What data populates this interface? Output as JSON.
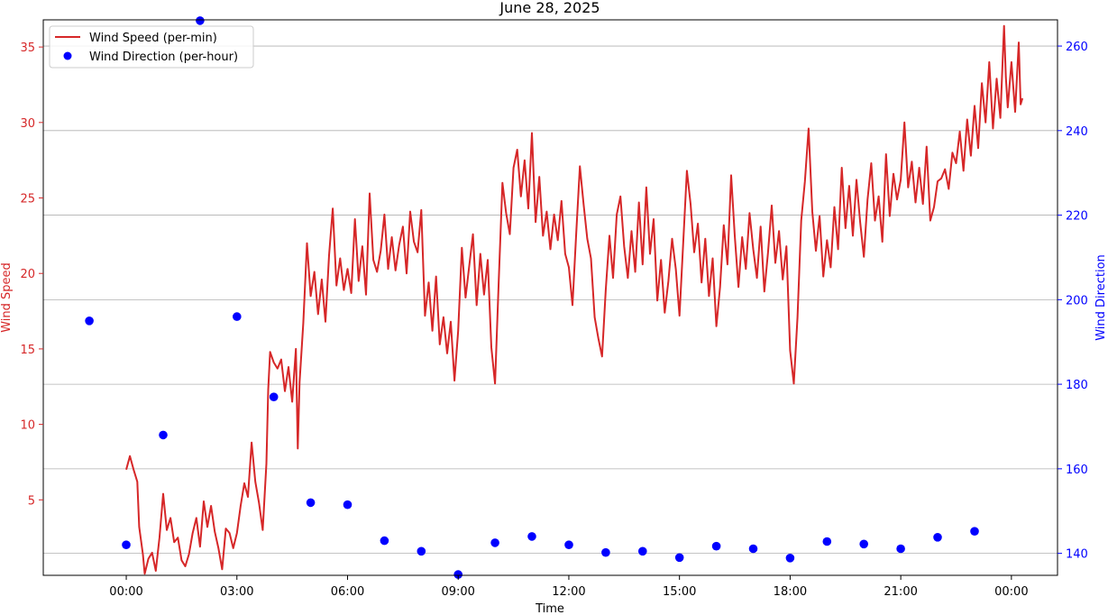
{
  "chart_data": {
    "type": "line",
    "title": "June 28, 2025",
    "xlabel": "Time",
    "ylabel_left": "Wind Speed",
    "ylabel_right": "Wind Direction",
    "x_ticks": [
      "00:00",
      "03:00",
      "06:00",
      "09:00",
      "12:00",
      "15:00",
      "18:00",
      "21:00",
      "00:00"
    ],
    "x_tick_hours": [
      0,
      3,
      6,
      9,
      12,
      15,
      18,
      21,
      24
    ],
    "xlim_hours": [
      -2.25,
      25.25
    ],
    "ylim_left": [
      0,
      36.8
    ],
    "ylim_right": [
      134.8,
      266.2
    ],
    "yticks_left": [
      5,
      10,
      15,
      20,
      25,
      30,
      35
    ],
    "yticks_right": [
      140,
      160,
      180,
      200,
      220,
      240,
      260
    ],
    "grid": "horizontal, right axis",
    "legend_position": "top-left",
    "left_axis_color": "#d62728",
    "right_axis_color": "#0000ff",
    "series": [
      {
        "name": "Wind Speed (per-min)",
        "axis": "left",
        "style": "line",
        "color": "#d62728",
        "points": [
          [
            0.0,
            7.0
          ],
          [
            0.1,
            7.9
          ],
          [
            0.2,
            7.0
          ],
          [
            0.3,
            6.2
          ],
          [
            0.35,
            3.2
          ],
          [
            0.45,
            1.4
          ],
          [
            0.5,
            0.1
          ],
          [
            0.6,
            1.1
          ],
          [
            0.7,
            1.5
          ],
          [
            0.8,
            0.3
          ],
          [
            0.9,
            2.5
          ],
          [
            1.0,
            5.4
          ],
          [
            1.1,
            3.0
          ],
          [
            1.2,
            3.8
          ],
          [
            1.3,
            2.2
          ],
          [
            1.4,
            2.5
          ],
          [
            1.5,
            1.0
          ],
          [
            1.6,
            0.6
          ],
          [
            1.7,
            1.4
          ],
          [
            1.8,
            2.8
          ],
          [
            1.9,
            3.8
          ],
          [
            2.0,
            1.9
          ],
          [
            2.1,
            4.9
          ],
          [
            2.2,
            3.2
          ],
          [
            2.3,
            4.6
          ],
          [
            2.4,
            2.9
          ],
          [
            2.5,
            1.8
          ],
          [
            2.6,
            0.4
          ],
          [
            2.7,
            3.1
          ],
          [
            2.8,
            2.8
          ],
          [
            2.9,
            1.8
          ],
          [
            3.0,
            2.8
          ],
          [
            3.1,
            4.6
          ],
          [
            3.2,
            6.1
          ],
          [
            3.3,
            5.2
          ],
          [
            3.4,
            8.8
          ],
          [
            3.5,
            6.2
          ],
          [
            3.6,
            4.8
          ],
          [
            3.7,
            3.0
          ],
          [
            3.8,
            7.4
          ],
          [
            3.85,
            12.3
          ],
          [
            3.9,
            14.8
          ],
          [
            4.0,
            14.1
          ],
          [
            4.1,
            13.7
          ],
          [
            4.2,
            14.3
          ],
          [
            4.3,
            12.2
          ],
          [
            4.4,
            13.8
          ],
          [
            4.5,
            11.5
          ],
          [
            4.6,
            15.0
          ],
          [
            4.65,
            8.4
          ],
          [
            4.7,
            12.8
          ],
          [
            4.8,
            16.7
          ],
          [
            4.9,
            22.0
          ],
          [
            5.0,
            18.5
          ],
          [
            5.1,
            20.1
          ],
          [
            5.2,
            17.3
          ],
          [
            5.3,
            19.6
          ],
          [
            5.4,
            16.8
          ],
          [
            5.5,
            21.2
          ],
          [
            5.6,
            24.3
          ],
          [
            5.7,
            19.2
          ],
          [
            5.8,
            21.0
          ],
          [
            5.9,
            18.9
          ],
          [
            6.0,
            20.3
          ],
          [
            6.1,
            18.7
          ],
          [
            6.2,
            23.6
          ],
          [
            6.3,
            19.5
          ],
          [
            6.4,
            21.8
          ],
          [
            6.5,
            18.6
          ],
          [
            6.6,
            25.3
          ],
          [
            6.7,
            20.9
          ],
          [
            6.8,
            20.1
          ],
          [
            6.9,
            21.5
          ],
          [
            7.0,
            23.9
          ],
          [
            7.1,
            20.3
          ],
          [
            7.2,
            22.4
          ],
          [
            7.3,
            20.2
          ],
          [
            7.4,
            21.9
          ],
          [
            7.5,
            23.1
          ],
          [
            7.6,
            20.0
          ],
          [
            7.7,
            24.1
          ],
          [
            7.8,
            22.1
          ],
          [
            7.9,
            21.4
          ],
          [
            8.0,
            24.2
          ],
          [
            8.1,
            17.2
          ],
          [
            8.2,
            19.4
          ],
          [
            8.3,
            16.2
          ],
          [
            8.4,
            19.8
          ],
          [
            8.5,
            15.3
          ],
          [
            8.6,
            17.1
          ],
          [
            8.7,
            14.7
          ],
          [
            8.8,
            16.8
          ],
          [
            8.9,
            12.9
          ],
          [
            9.0,
            16.2
          ],
          [
            9.1,
            21.7
          ],
          [
            9.2,
            18.4
          ],
          [
            9.3,
            20.5
          ],
          [
            9.4,
            22.6
          ],
          [
            9.5,
            17.9
          ],
          [
            9.6,
            21.3
          ],
          [
            9.7,
            18.6
          ],
          [
            9.8,
            20.9
          ],
          [
            9.9,
            15.1
          ],
          [
            10.0,
            12.7
          ],
          [
            10.1,
            19.5
          ],
          [
            10.2,
            26.0
          ],
          [
            10.3,
            24.0
          ],
          [
            10.4,
            22.6
          ],
          [
            10.5,
            27.0
          ],
          [
            10.6,
            28.2
          ],
          [
            10.7,
            25.1
          ],
          [
            10.8,
            27.5
          ],
          [
            10.9,
            24.3
          ],
          [
            11.0,
            29.3
          ],
          [
            11.1,
            23.4
          ],
          [
            11.2,
            26.4
          ],
          [
            11.3,
            22.5
          ],
          [
            11.4,
            24.1
          ],
          [
            11.5,
            21.6
          ],
          [
            11.6,
            23.9
          ],
          [
            11.7,
            22.2
          ],
          [
            11.8,
            24.8
          ],
          [
            11.9,
            21.3
          ],
          [
            12.0,
            20.4
          ],
          [
            12.1,
            17.9
          ],
          [
            12.2,
            22.6
          ],
          [
            12.3,
            27.1
          ],
          [
            12.4,
            24.6
          ],
          [
            12.5,
            22.3
          ],
          [
            12.6,
            21.0
          ],
          [
            12.7,
            17.1
          ],
          [
            12.8,
            15.7
          ],
          [
            12.9,
            14.5
          ],
          [
            13.0,
            18.9
          ],
          [
            13.1,
            22.5
          ],
          [
            13.2,
            19.7
          ],
          [
            13.3,
            23.9
          ],
          [
            13.4,
            25.1
          ],
          [
            13.5,
            21.8
          ],
          [
            13.6,
            19.7
          ],
          [
            13.7,
            22.8
          ],
          [
            13.8,
            20.1
          ],
          [
            13.9,
            24.7
          ],
          [
            14.0,
            20.6
          ],
          [
            14.1,
            25.7
          ],
          [
            14.2,
            21.3
          ],
          [
            14.3,
            23.6
          ],
          [
            14.4,
            18.2
          ],
          [
            14.5,
            20.9
          ],
          [
            14.6,
            17.4
          ],
          [
            14.7,
            19.5
          ],
          [
            14.8,
            22.3
          ],
          [
            14.9,
            20.3
          ],
          [
            15.0,
            17.2
          ],
          [
            15.1,
            22.0
          ],
          [
            15.2,
            26.8
          ],
          [
            15.3,
            24.6
          ],
          [
            15.4,
            21.4
          ],
          [
            15.5,
            23.3
          ],
          [
            15.6,
            19.4
          ],
          [
            15.7,
            22.3
          ],
          [
            15.8,
            18.5
          ],
          [
            15.9,
            21.0
          ],
          [
            16.0,
            16.5
          ],
          [
            16.1,
            19.1
          ],
          [
            16.2,
            23.2
          ],
          [
            16.3,
            20.6
          ],
          [
            16.4,
            26.5
          ],
          [
            16.5,
            22.5
          ],
          [
            16.6,
            19.1
          ],
          [
            16.7,
            22.4
          ],
          [
            16.8,
            20.3
          ],
          [
            16.9,
            24.0
          ],
          [
            17.0,
            21.6
          ],
          [
            17.1,
            19.7
          ],
          [
            17.2,
            23.1
          ],
          [
            17.3,
            18.8
          ],
          [
            17.4,
            21.4
          ],
          [
            17.5,
            24.5
          ],
          [
            17.6,
            20.7
          ],
          [
            17.7,
            22.8
          ],
          [
            17.8,
            19.6
          ],
          [
            17.9,
            21.8
          ],
          [
            18.0,
            14.9
          ],
          [
            18.1,
            12.7
          ],
          [
            18.2,
            17.1
          ],
          [
            18.3,
            23.5
          ],
          [
            18.4,
            26.1
          ],
          [
            18.5,
            29.6
          ],
          [
            18.6,
            24.1
          ],
          [
            18.7,
            21.5
          ],
          [
            18.8,
            23.8
          ],
          [
            18.9,
            19.8
          ],
          [
            19.0,
            22.2
          ],
          [
            19.1,
            20.4
          ],
          [
            19.2,
            24.4
          ],
          [
            19.3,
            21.6
          ],
          [
            19.4,
            27.0
          ],
          [
            19.5,
            23.0
          ],
          [
            19.6,
            25.8
          ],
          [
            19.7,
            22.5
          ],
          [
            19.8,
            26.2
          ],
          [
            19.9,
            23.4
          ],
          [
            20.0,
            21.1
          ],
          [
            20.1,
            24.9
          ],
          [
            20.2,
            27.3
          ],
          [
            20.3,
            23.5
          ],
          [
            20.4,
            25.1
          ],
          [
            20.5,
            22.1
          ],
          [
            20.6,
            27.9
          ],
          [
            20.7,
            23.8
          ],
          [
            20.8,
            26.6
          ],
          [
            20.9,
            24.9
          ],
          [
            21.0,
            26.2
          ],
          [
            21.1,
            30.0
          ],
          [
            21.2,
            25.7
          ],
          [
            21.3,
            27.4
          ],
          [
            21.4,
            24.7
          ],
          [
            21.5,
            27.0
          ],
          [
            21.6,
            24.6
          ],
          [
            21.7,
            28.4
          ],
          [
            21.8,
            23.5
          ],
          [
            21.9,
            24.4
          ],
          [
            22.0,
            26.1
          ],
          [
            22.1,
            26.3
          ],
          [
            22.2,
            26.9
          ],
          [
            22.3,
            25.6
          ],
          [
            22.4,
            28.0
          ],
          [
            22.5,
            27.3
          ],
          [
            22.6,
            29.4
          ],
          [
            22.7,
            26.8
          ],
          [
            22.8,
            30.2
          ],
          [
            22.9,
            27.8
          ],
          [
            23.0,
            31.1
          ],
          [
            23.1,
            28.3
          ],
          [
            23.2,
            32.6
          ],
          [
            23.3,
            30.0
          ],
          [
            23.4,
            34.0
          ],
          [
            23.5,
            29.6
          ],
          [
            23.6,
            32.9
          ],
          [
            23.7,
            30.3
          ],
          [
            23.8,
            36.4
          ],
          [
            23.85,
            33.0
          ],
          [
            23.9,
            31.0
          ],
          [
            24.0,
            34.0
          ],
          [
            24.1,
            30.7
          ],
          [
            24.2,
            35.3
          ],
          [
            24.25,
            31.2
          ],
          [
            24.3,
            31.6
          ]
        ]
      },
      {
        "name": "Wind Direction (per-hour)",
        "axis": "right",
        "style": "scatter",
        "color": "#0000ff",
        "points": [
          [
            -1,
            195
          ],
          [
            0,
            142
          ],
          [
            1,
            168
          ],
          [
            2,
            266
          ],
          [
            3,
            196
          ],
          [
            4,
            177
          ],
          [
            5,
            152
          ],
          [
            6,
            151.5
          ],
          [
            7,
            143
          ],
          [
            8,
            140.5
          ],
          [
            9,
            135
          ],
          [
            10,
            142.5
          ],
          [
            11,
            144
          ],
          [
            12,
            142
          ],
          [
            13,
            140.2
          ],
          [
            14,
            140.5
          ],
          [
            15,
            139
          ],
          [
            16,
            141.7
          ],
          [
            17,
            141.1
          ],
          [
            18,
            138.9
          ],
          [
            19,
            142.8
          ],
          [
            20,
            142.2
          ],
          [
            21,
            141.1
          ],
          [
            22,
            143.8
          ],
          [
            23,
            145.2
          ]
        ]
      }
    ]
  }
}
